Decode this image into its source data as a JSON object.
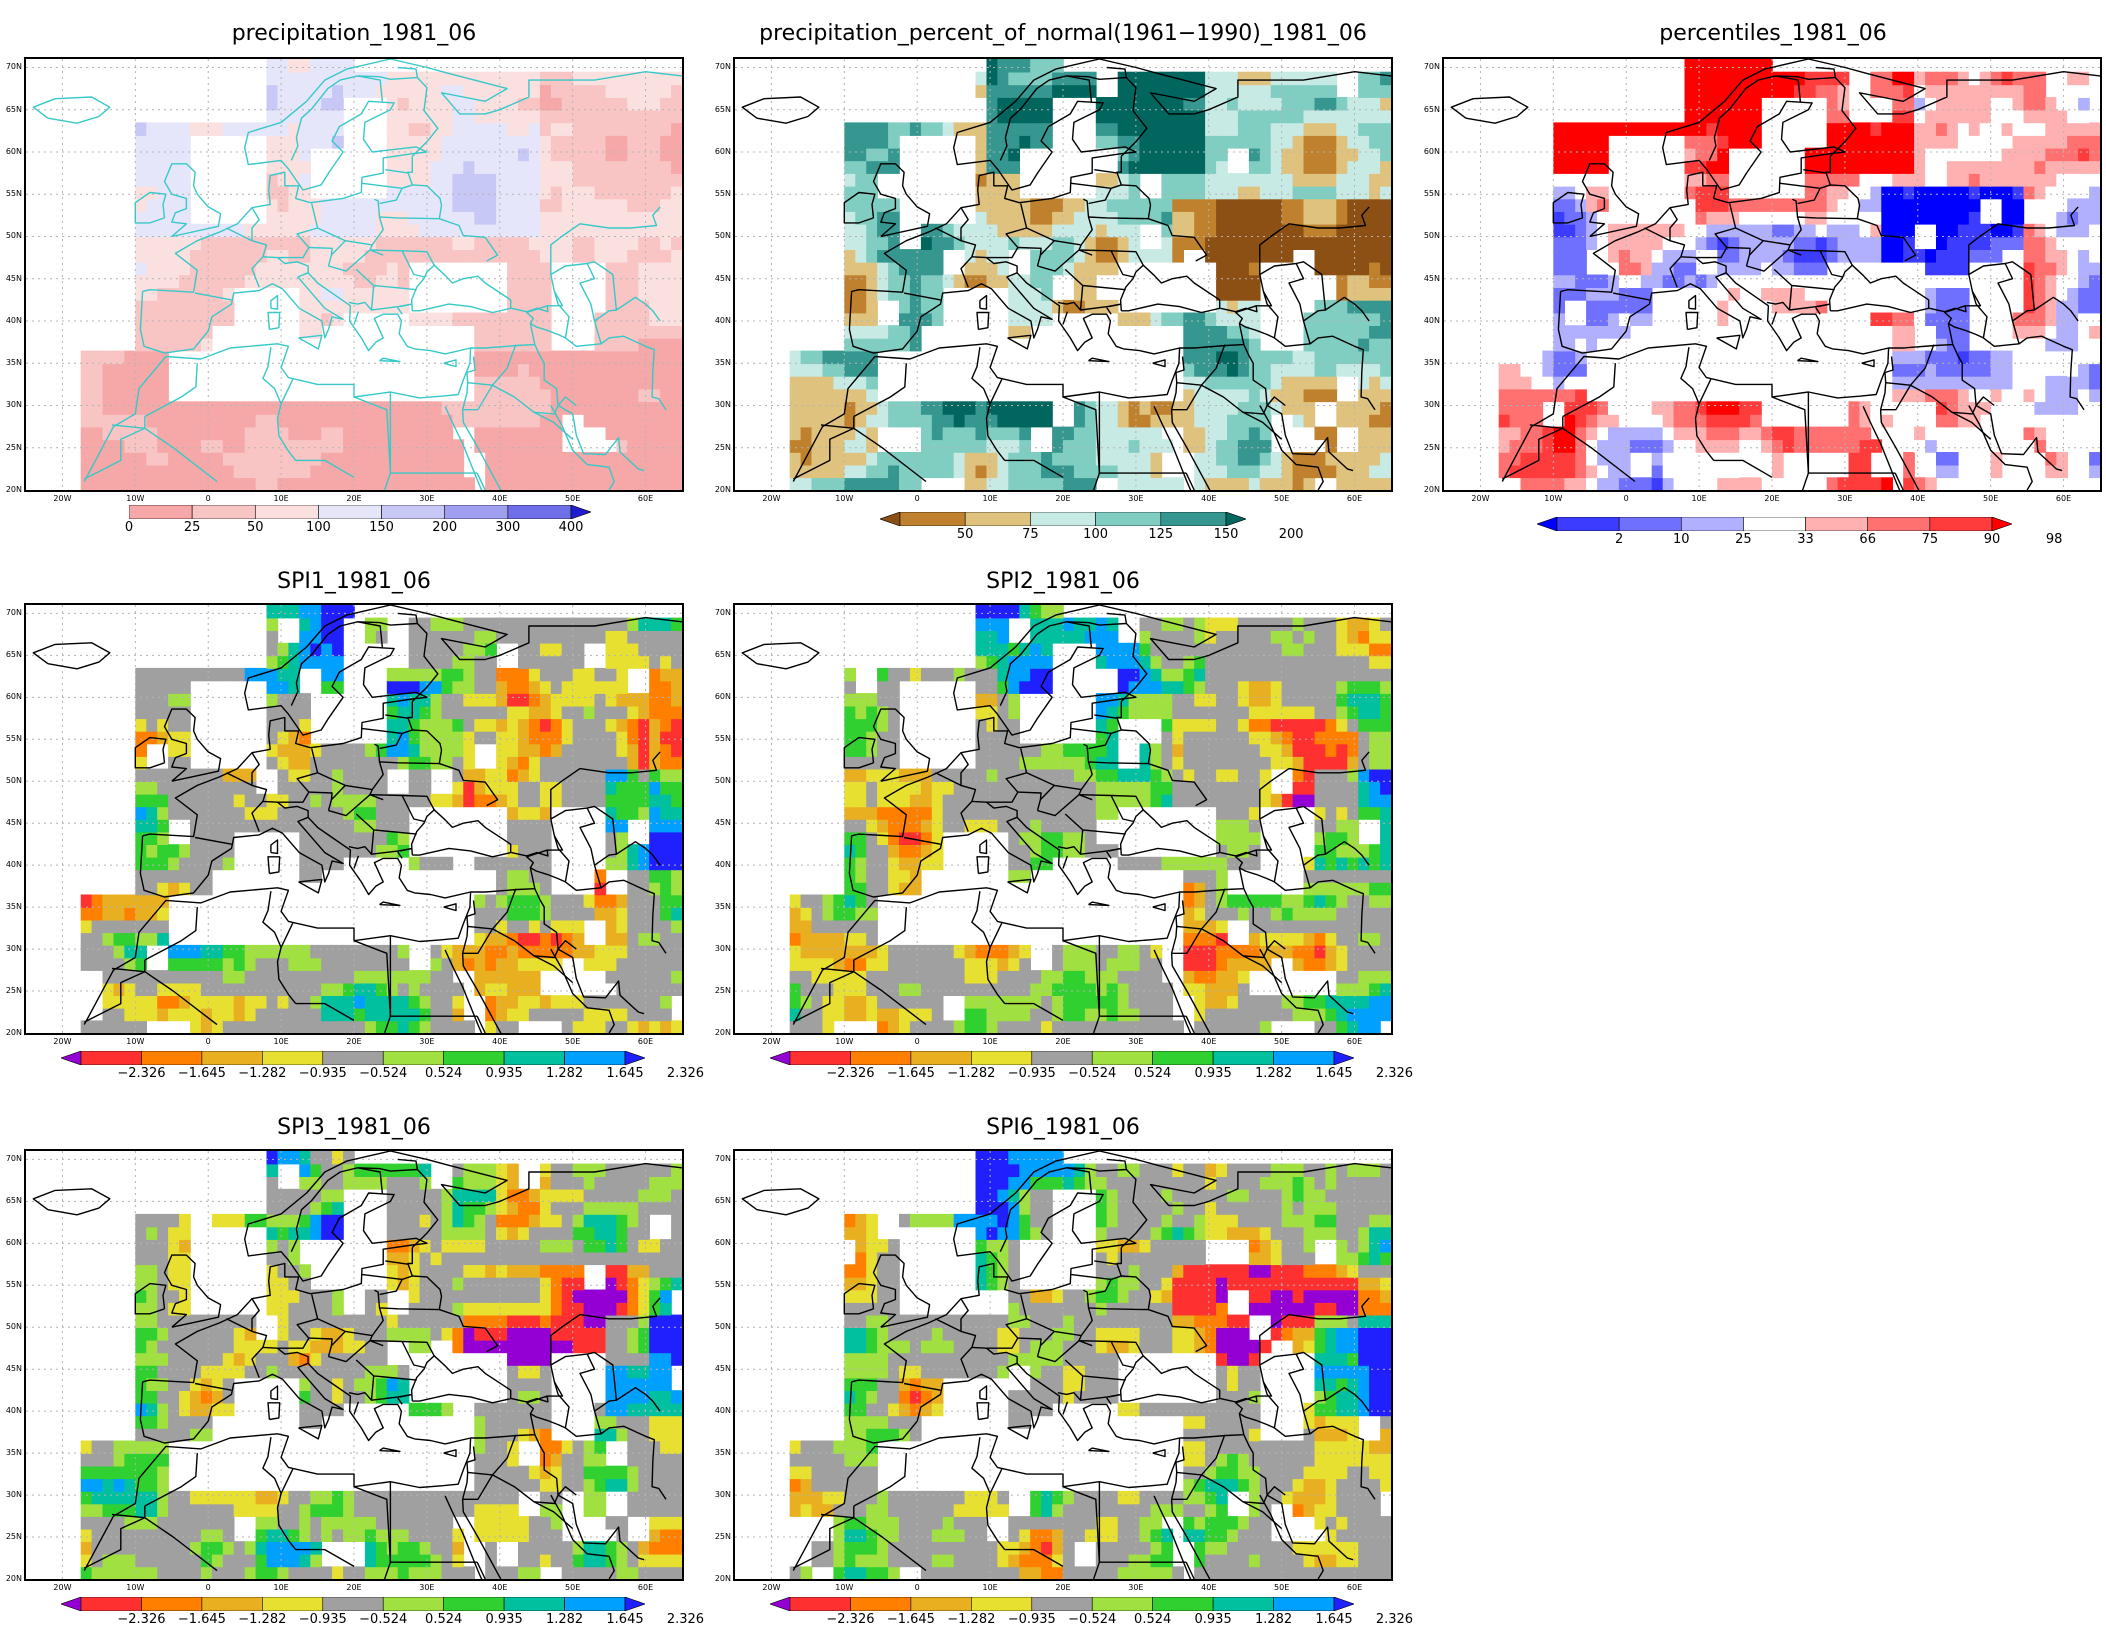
{
  "lat_ticks": [
    "70N",
    "65N",
    "60N",
    "55N",
    "50N",
    "45N",
    "40N",
    "35N",
    "30N",
    "25N",
    "20N"
  ],
  "lon_ticks": [
    "20W",
    "10W",
    "0",
    "10E",
    "20E",
    "30E",
    "40E",
    "50E",
    "60E"
  ],
  "panels": [
    {
      "id": "precip",
      "title": "precipitation_1981_06",
      "fill": "precip",
      "legend": {
        "labels": [
          "0",
          "25",
          "50",
          "100",
          "150",
          "200",
          "300",
          "400"
        ],
        "colors": [
          "#f6a7a7",
          "#f8c4c4",
          "#fbe0e0",
          "#e6e6fa",
          "#c8c8f6",
          "#a0a0f0",
          "#6e6ee8",
          "#1e1ecc"
        ],
        "left_arrow": false,
        "right_arrow": true
      }
    },
    {
      "id": "pctnorm",
      "title": "precipitation_percent_of_normal(1961−1990)_1981_06",
      "fill": "pct",
      "legend": {
        "labels": [
          "50",
          "75",
          "100",
          "125",
          "150",
          "200"
        ],
        "colors": [
          "#8c5014",
          "#bf812d",
          "#dfc27d",
          "#c7eae5",
          "#80cdc1",
          "#35978f",
          "#01665e"
        ],
        "left_arrow": true,
        "right_arrow": true
      }
    },
    {
      "id": "percentiles",
      "title": "percentiles_1981_06",
      "fill": "perc",
      "legend": {
        "labels": [
          "2",
          "10",
          "25",
          "33",
          "66",
          "75",
          "90",
          "98"
        ],
        "colors": [
          "#0000ff",
          "#3c3cff",
          "#7070ff",
          "#b0b0ff",
          "#ffffff",
          "#ffb0b0",
          "#ff7070",
          "#ff3c3c",
          "#ff0000"
        ],
        "left_arrow": true,
        "right_arrow": true
      }
    },
    {
      "id": "spi1",
      "title": "SPI1_1981_06",
      "fill": "spi",
      "legend": {
        "labels": [
          "−2.326",
          "−1.645",
          "−1.282",
          "−0.935",
          "−0.524",
          "0.524",
          "0.935",
          "1.282",
          "1.645",
          "2.326"
        ],
        "colors": [
          "#9400d3",
          "#ff3030",
          "#ff7f00",
          "#e8b020",
          "#e8e030",
          "#a0a0a0",
          "#a0e040",
          "#30d030",
          "#00c0a0",
          "#00a0ff",
          "#2020ff"
        ],
        "left_arrow": true,
        "right_arrow": true
      }
    },
    {
      "id": "spi2",
      "title": "SPI2_1981_06",
      "fill": "spi",
      "legend": {
        "labels": [
          "−2.326",
          "−1.645",
          "−1.282",
          "−0.935",
          "−0.524",
          "0.524",
          "0.935",
          "1.282",
          "1.645",
          "2.326"
        ],
        "colors": [
          "#9400d3",
          "#ff3030",
          "#ff7f00",
          "#e8b020",
          "#e8e030",
          "#a0a0a0",
          "#a0e040",
          "#30d030",
          "#00c0a0",
          "#00a0ff",
          "#2020ff"
        ],
        "left_arrow": true,
        "right_arrow": true
      }
    },
    {
      "id": "spi3",
      "title": "SPI3_1981_06",
      "fill": "spi",
      "legend": {
        "labels": [
          "−2.326",
          "−1.645",
          "−1.282",
          "−0.935",
          "−0.524",
          "0.524",
          "0.935",
          "1.282",
          "1.645",
          "2.326"
        ],
        "colors": [
          "#9400d3",
          "#ff3030",
          "#ff7f00",
          "#e8b020",
          "#e8e030",
          "#a0a0a0",
          "#a0e040",
          "#30d030",
          "#00c0a0",
          "#00a0ff",
          "#2020ff"
        ],
        "left_arrow": true,
        "right_arrow": true
      }
    },
    {
      "id": "spi6",
      "title": "SPI6_1981_06",
      "fill": "spi",
      "legend": {
        "labels": [
          "−2.326",
          "−1.645",
          "−1.282",
          "−0.935",
          "−0.524",
          "0.524",
          "0.935",
          "1.282",
          "1.645",
          "2.326"
        ],
        "colors": [
          "#9400d3",
          "#ff3030",
          "#ff7f00",
          "#e8b020",
          "#e8e030",
          "#a0a0a0",
          "#a0e040",
          "#30d030",
          "#00c0a0",
          "#00a0ff",
          "#2020ff"
        ],
        "left_arrow": true,
        "right_arrow": true
      }
    }
  ]
}
